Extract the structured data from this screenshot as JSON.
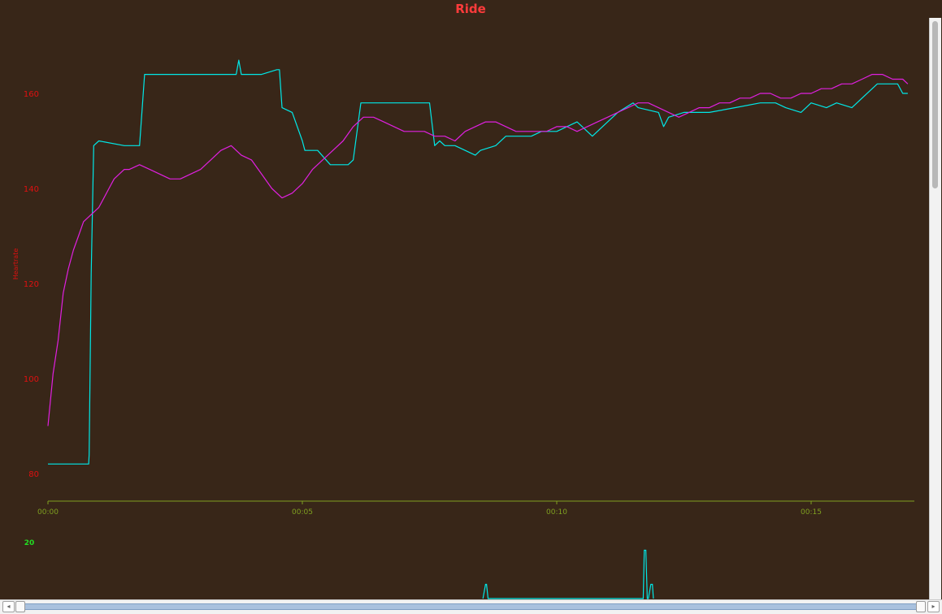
{
  "chart_data": {
    "type": "line",
    "title": "Ride",
    "ylabel": "Heartrate",
    "xlabel": "",
    "x_ticks": [
      "00:00",
      "00:05",
      "00:10",
      "00:15"
    ],
    "y_ticks": [
      80,
      100,
      120,
      140,
      160
    ],
    "ylim": [
      76,
      176
    ],
    "xlim_minutes": [
      0,
      17
    ],
    "grid": false,
    "legend": "none",
    "series": [
      {
        "color": "#00e8e8",
        "x": [
          0,
          0.8,
          0.81,
          0.85,
          0.9,
          1.0,
          1.5,
          1.8,
          1.9,
          2.0,
          3.7,
          3.75,
          3.8,
          4.2,
          4.5,
          4.55,
          4.6,
          4.8,
          5.0,
          5.05,
          5.3,
          5.55,
          5.6,
          5.9,
          6.0,
          6.15,
          6.2,
          6.3,
          7.0,
          7.5,
          7.6,
          7.7,
          7.8,
          8.0,
          8.4,
          8.5,
          8.8,
          9.0,
          9.5,
          9.7,
          10.0,
          10.4,
          10.5,
          10.7,
          11.0,
          11.2,
          11.5,
          11.6,
          12.0,
          12.1,
          12.2,
          12.5,
          13.0,
          13.5,
          14.0,
          14.3,
          14.5,
          14.8,
          15.0,
          15.3,
          15.5,
          15.8,
          16.0,
          16.3,
          16.5,
          16.7,
          16.8,
          16.9
        ],
        "y": [
          82,
          82,
          84,
          122,
          149,
          150,
          149,
          149,
          164,
          164,
          164,
          167,
          164,
          164,
          165,
          165,
          157,
          156,
          150,
          148,
          148,
          145,
          145,
          145,
          146,
          158,
          158,
          158,
          158,
          158,
          149,
          150,
          149,
          149,
          147,
          148,
          149,
          151,
          151,
          152,
          152,
          154,
          153,
          151,
          154,
          156,
          158,
          157,
          156,
          153,
          155,
          156,
          156,
          157,
          158,
          158,
          157,
          156,
          158,
          157,
          158,
          157,
          159,
          162,
          162,
          162,
          160,
          160
        ]
      },
      {
        "color": "#e020e0",
        "x": [
          0,
          0.1,
          0.2,
          0.3,
          0.4,
          0.5,
          0.6,
          0.7,
          0.8,
          0.9,
          1.0,
          1.1,
          1.2,
          1.3,
          1.4,
          1.5,
          1.6,
          1.8,
          2.0,
          2.2,
          2.4,
          2.6,
          2.8,
          3.0,
          3.2,
          3.4,
          3.6,
          3.8,
          4.0,
          4.2,
          4.4,
          4.6,
          4.8,
          5.0,
          5.2,
          5.4,
          5.6,
          5.8,
          6.0,
          6.2,
          6.4,
          6.6,
          6.8,
          7.0,
          7.2,
          7.4,
          7.6,
          7.8,
          8.0,
          8.2,
          8.4,
          8.6,
          8.8,
          9.0,
          9.2,
          9.4,
          9.6,
          9.8,
          10.0,
          10.2,
          10.4,
          10.6,
          10.8,
          11.0,
          11.2,
          11.4,
          11.6,
          11.8,
          12.0,
          12.2,
          12.4,
          12.6,
          12.8,
          13.0,
          13.2,
          13.4,
          13.6,
          13.8,
          14.0,
          14.2,
          14.4,
          14.6,
          14.8,
          15.0,
          15.2,
          15.4,
          15.6,
          15.8,
          16.0,
          16.2,
          16.4,
          16.6,
          16.8,
          16.9
        ],
        "y": [
          90,
          101,
          108,
          118,
          123,
          127,
          130,
          133,
          134,
          135,
          136,
          138,
          140,
          142,
          143,
          144,
          144,
          145,
          144,
          143,
          142,
          142,
          143,
          144,
          146,
          148,
          149,
          147,
          146,
          143,
          140,
          138,
          139,
          141,
          144,
          146,
          148,
          150,
          153,
          155,
          155,
          154,
          153,
          152,
          152,
          152,
          151,
          151,
          150,
          152,
          153,
          154,
          154,
          153,
          152,
          152,
          152,
          152,
          153,
          153,
          152,
          153,
          154,
          155,
          156,
          157,
          158,
          158,
          157,
          156,
          155,
          156,
          157,
          157,
          158,
          158,
          159,
          159,
          160,
          160,
          159,
          159,
          160,
          160,
          161,
          161,
          162,
          162,
          163,
          164,
          164,
          163,
          163,
          162
        ]
      }
    ],
    "lower_panel": {
      "y_tick": "20",
      "series": [
        {
          "color": "#00e8e8",
          "x": [
            8.55,
            8.6,
            8.62,
            8.65,
            11.7,
            11.72,
            11.75,
            11.78,
            11.8,
            11.85,
            11.88,
            11.9
          ],
          "y": [
            0,
            5,
            5,
            0,
            0,
            17,
            17,
            0,
            0,
            5,
            5,
            0
          ]
        }
      ]
    }
  }
}
